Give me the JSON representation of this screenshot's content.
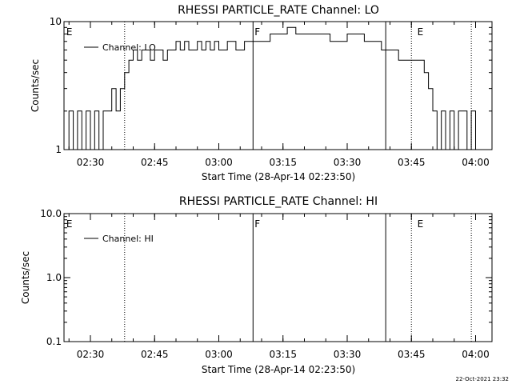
{
  "chart_data": [
    {
      "type": "line",
      "title": "RHESSI PARTICLE_RATE Channel: LO",
      "xlabel": "Start Time (28-Apr-14 02:23:50)",
      "ylabel": "Counts/sec",
      "yscale": "log",
      "ylim": [
        1,
        10
      ],
      "y_ticks": [
        "1",
        "10"
      ],
      "x_ticks": [
        "02:30",
        "02:45",
        "03:00",
        "03:15",
        "03:30",
        "03:45",
        "04:00"
      ],
      "xlim": [
        "02:23:50",
        "04:03:50"
      ],
      "legend": "top-left",
      "series": [
        {
          "name": "Channel: LO",
          "x": [
            "02:24",
            "02:25",
            "02:26",
            "02:27",
            "02:28",
            "02:29",
            "02:30",
            "02:31",
            "02:32",
            "02:33",
            "02:34",
            "02:35",
            "02:36",
            "02:37",
            "02:38",
            "02:39",
            "02:40",
            "02:41",
            "02:42",
            "02:43",
            "02:44",
            "02:45",
            "02:46",
            "02:47",
            "02:48",
            "02:49",
            "02:50",
            "02:51",
            "02:52",
            "02:53",
            "02:54",
            "02:55",
            "02:56",
            "02:57",
            "02:58",
            "02:59",
            "03:00",
            "03:02",
            "03:04",
            "03:06",
            "03:08",
            "03:10",
            "03:12",
            "03:14",
            "03:16",
            "03:18",
            "03:20",
            "03:22",
            "03:24",
            "03:26",
            "03:28",
            "03:30",
            "03:32",
            "03:34",
            "03:36",
            "03:38",
            "03:40",
            "03:42",
            "03:44",
            "03:46",
            "03:47",
            "03:48",
            "03:49",
            "03:50",
            "03:51",
            "03:52",
            "03:53",
            "03:54",
            "03:55",
            "03:56",
            "03:57",
            "03:58",
            "03:59",
            "04:00"
          ],
          "values": [
            1,
            2,
            1,
            2,
            1,
            2,
            1,
            2,
            1,
            2,
            2,
            3,
            2,
            3,
            4,
            5,
            6,
            5,
            6,
            6,
            5,
            6,
            6,
            5,
            6,
            6,
            7,
            6,
            7,
            6,
            6,
            7,
            6,
            7,
            6,
            7,
            6,
            7,
            6,
            7,
            7,
            7,
            8,
            8,
            9,
            8,
            8,
            8,
            8,
            7,
            7,
            8,
            8,
            7,
            7,
            6,
            6,
            5,
            5,
            5,
            5,
            4,
            3,
            2,
            1,
            2,
            1,
            2,
            1,
            2,
            2,
            1,
            2,
            1
          ]
        }
      ],
      "annotations": {
        "letters": [
          {
            "text": "E",
            "time": "02:24"
          },
          {
            "text": "F",
            "time": "03:08"
          },
          {
            "text": "E",
            "time": "03:46"
          }
        ],
        "solid_lines": [
          "03:08",
          "03:39"
        ],
        "dotted_lines": [
          "02:38",
          "03:45",
          "03:59"
        ]
      }
    },
    {
      "type": "line",
      "title": "RHESSI PARTICLE_RATE Channel: HI",
      "xlabel": "Start Time (28-Apr-14 02:23:50)",
      "ylabel": "Counts/sec",
      "yscale": "log",
      "ylim": [
        0.1,
        10
      ],
      "y_ticks": [
        "0.1",
        "1.0",
        "10.0"
      ],
      "x_ticks": [
        "02:30",
        "02:45",
        "03:00",
        "03:15",
        "03:30",
        "03:45",
        "04:00"
      ],
      "xlim": [
        "02:23:50",
        "04:03:50"
      ],
      "legend": "top-left",
      "series": [
        {
          "name": "Channel: HI",
          "x": [],
          "values": []
        }
      ],
      "annotations": {
        "letters": [
          {
            "text": "E",
            "time": "02:24"
          },
          {
            "text": "F",
            "time": "03:08"
          },
          {
            "text": "E",
            "time": "03:46"
          }
        ],
        "solid_lines": [
          "03:08",
          "03:39"
        ],
        "dotted_lines": [
          "02:38",
          "03:45",
          "03:59"
        ]
      }
    }
  ],
  "footer": {
    "timestamp": "22-Oct-2021 23:32"
  }
}
